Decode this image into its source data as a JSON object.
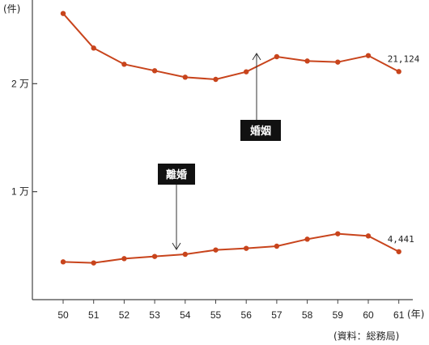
{
  "chart_data": {
    "type": "line",
    "categories": [
      "50",
      "51",
      "52",
      "53",
      "54",
      "55",
      "56",
      "57",
      "58",
      "59",
      "60",
      "61"
    ],
    "xlabel": "(年)",
    "ylabel": "(件)",
    "ytick_labels": [
      {
        "value": 10000,
        "label": "1 万"
      },
      {
        "value": 20000,
        "label": "2 万"
      }
    ],
    "ylim": [
      0,
      27000
    ],
    "grid": false,
    "series_color": "#c8441c",
    "series": [
      {
        "name": "婚姻",
        "values": [
          26500,
          23300,
          21800,
          21200,
          20600,
          20400,
          21100,
          22500,
          22100,
          22000,
          22600,
          21124
        ],
        "end_label": "21,124"
      },
      {
        "name": "離婚",
        "values": [
          3500,
          3400,
          3800,
          4000,
          4200,
          4600,
          4750,
          4950,
          5600,
          6100,
          5900,
          4441
        ],
        "end_label": "4,441"
      }
    ],
    "source": "(資料：総務局)"
  }
}
